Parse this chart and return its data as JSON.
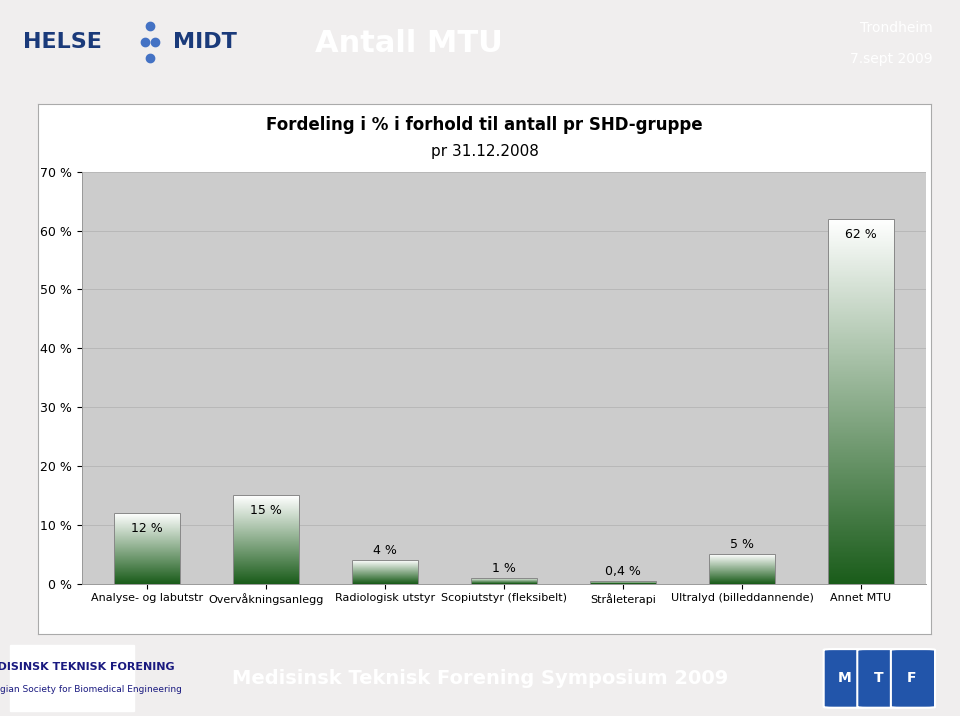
{
  "title_line1": "Fordeling i % i forhold til antall pr SHD-gruppe",
  "title_line2": "pr 31.12.2008",
  "categories": [
    "Analyse- og labutstr",
    "Overvåkningsanlegg",
    "Radiologisk utstyr",
    "Scopiutstyr (fleksibelt)",
    "Stråleterapi",
    "Ultralyd (billeddannende)",
    "Annet MTU"
  ],
  "values": [
    12,
    15,
    4,
    1,
    0.4,
    5,
    62
  ],
  "value_labels": [
    "12 %",
    "15 %",
    "4 %",
    "1 %",
    "0,4 %",
    "5 %",
    "62 %"
  ],
  "ylim": [
    0,
    70
  ],
  "yticks": [
    0,
    10,
    20,
    30,
    40,
    50,
    60,
    70
  ],
  "ytick_labels": [
    "0 %",
    "10 %",
    "20 %",
    "30 %",
    "40 %",
    "50 %",
    "60 %",
    "70 %"
  ],
  "bar_color_top": "#ffffff",
  "bar_color_bottom": "#1a5c1a",
  "chart_bg": "#cccccc",
  "outer_bg": "#f0eeee",
  "grid_color": "#b8b8b8",
  "chart_border": "#aaaaaa",
  "title_fontsize": 12,
  "tick_fontsize": 9,
  "label_fontsize": 8,
  "value_label_fontsize": 9,
  "header_bg": "#4472c4",
  "header_logo_bg": "#ffffff",
  "header_title": "Antall MTU",
  "header_subtitle1": "Trondheim",
  "header_subtitle2": "7.sept 2009",
  "footer_bg": "#4472c4",
  "footer_text": "Medisinsk Teknisk Forening Symposium 2009",
  "footer_org1": "MEDISINSK TEKNISK FORENING",
  "footer_org2": "Norwegian Society for Biomedical Engineering",
  "bar_width": 0.55
}
